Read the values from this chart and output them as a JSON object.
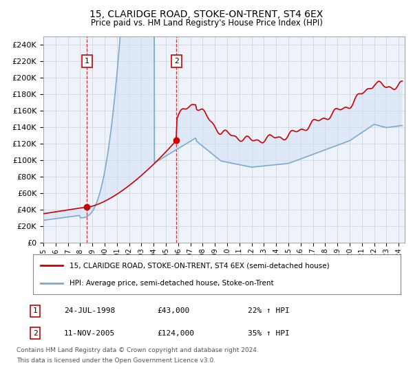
{
  "title": "15, CLARIDGE ROAD, STOKE-ON-TRENT, ST4 6EX",
  "subtitle": "Price paid vs. HM Land Registry's House Price Index (HPI)",
  "ylim": [
    0,
    250000
  ],
  "yticks": [
    0,
    20000,
    40000,
    60000,
    80000,
    100000,
    120000,
    140000,
    160000,
    180000,
    200000,
    220000,
    240000
  ],
  "ytick_labels": [
    "£0",
    "£20K",
    "£40K",
    "£60K",
    "£80K",
    "£100K",
    "£120K",
    "£140K",
    "£160K",
    "£180K",
    "£200K",
    "£220K",
    "£240K"
  ],
  "bg_color": "#eef2fb",
  "grid_color": "#cccccc",
  "sale1_date": 1998.56,
  "sale1_price": 43000,
  "sale1_label": "1",
  "sale1_info_date": "24-JUL-1998",
  "sale1_info_price": "£43,000",
  "sale1_info_hpi": "22% ↑ HPI",
  "sale2_date": 2005.86,
  "sale2_price": 124000,
  "sale2_label": "2",
  "sale2_info_date": "11-NOV-2005",
  "sale2_info_price": "£124,000",
  "sale2_info_hpi": "35% ↑ HPI",
  "red_line_color": "#cc0000",
  "blue_line_color": "#7aaad0",
  "shade_color": "#d0dff5",
  "legend_label_red": "15, CLARIDGE ROAD, STOKE-ON-TRENT, ST4 6EX (semi-detached house)",
  "legend_label_blue": "HPI: Average price, semi-detached house, Stoke-on-Trent",
  "footnote1": "Contains HM Land Registry data © Crown copyright and database right 2024.",
  "footnote2": "This data is licensed under the Open Government Licence v3.0."
}
